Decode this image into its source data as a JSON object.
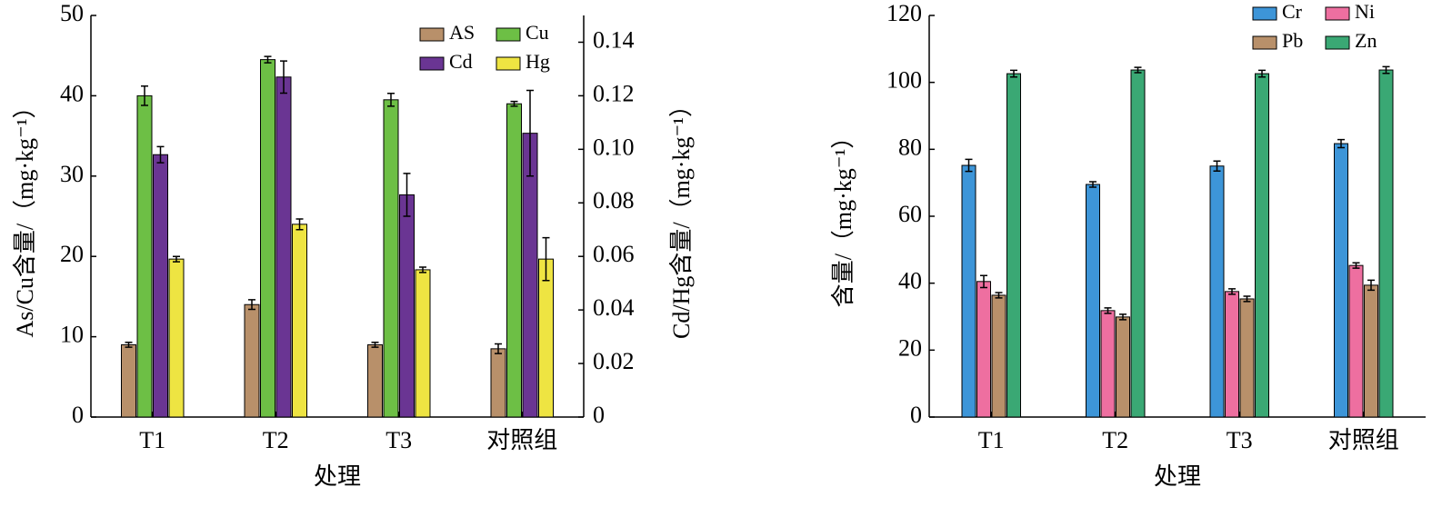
{
  "chart_data": [
    {
      "type": "bar",
      "x_label": "处理",
      "y_label": "As/Cu含量/（mg·kg⁻¹）",
      "y2_label": "Cd/Hg含量/（mg·kg⁻¹）",
      "categories": [
        "T1",
        "T2",
        "T3",
        "对照组"
      ],
      "ylim": [
        0,
        50
      ],
      "yticks": [
        0,
        10,
        20,
        30,
        40,
        50
      ],
      "y2lim": [
        0,
        0.15
      ],
      "y2ticks": [
        0,
        0.02,
        0.04,
        0.06,
        0.08,
        {
          "value": 0.1,
          "label": "0.10"
        },
        0.12,
        0.14
      ],
      "series": [
        {
          "name": "AS",
          "color": "#b8906a",
          "values": [
            9.0,
            14.0,
            9.0,
            8.5
          ],
          "errors": [
            0.3,
            0.6,
            0.3,
            0.6
          ]
        },
        {
          "name": "Cu",
          "color": "#6dbf45",
          "values": [
            40.0,
            44.5,
            39.5,
            39.0
          ],
          "errors": [
            1.2,
            0.4,
            0.8,
            0.3
          ]
        },
        {
          "name": "Cd",
          "color": "#6a3593",
          "axis": "y2",
          "values": [
            0.098,
            0.127,
            0.083,
            0.106
          ],
          "errors": [
            0.003,
            0.006,
            0.008,
            0.016
          ]
        },
        {
          "name": "Hg",
          "color": "#eee442",
          "axis": "y2",
          "values": [
            0.059,
            0.072,
            0.055,
            0.059
          ],
          "errors": [
            0.001,
            0.002,
            0.001,
            0.008
          ]
        }
      ]
    },
    {
      "type": "bar",
      "x_label": "处理",
      "y_label": "含量/（mg·kg⁻¹）",
      "categories": [
        "T1",
        "T2",
        "T3",
        "对照组"
      ],
      "ylim": [
        0,
        120
      ],
      "yticks": [
        0,
        20,
        40,
        60,
        80,
        100,
        120
      ],
      "series": [
        {
          "name": "Cr",
          "color": "#3d95d8",
          "values": [
            75.2,
            69.5,
            75.0,
            81.7
          ],
          "errors": [
            1.8,
            0.8,
            1.5,
            1.2
          ]
        },
        {
          "name": "Ni",
          "color": "#ee6fa0",
          "values": [
            40.5,
            31.8,
            37.5,
            45.3
          ],
          "errors": [
            1.8,
            0.8,
            0.8,
            0.8
          ]
        },
        {
          "name": "Pb",
          "color": "#b8906a",
          "values": [
            36.4,
            29.9,
            35.3,
            39.4
          ],
          "errors": [
            0.8,
            0.8,
            0.8,
            1.5
          ]
        },
        {
          "name": "Zn",
          "color": "#3aa874",
          "values": [
            102.6,
            103.7,
            102.6,
            103.7
          ],
          "errors": [
            1.0,
            0.8,
            1.0,
            1.0
          ]
        }
      ]
    }
  ]
}
